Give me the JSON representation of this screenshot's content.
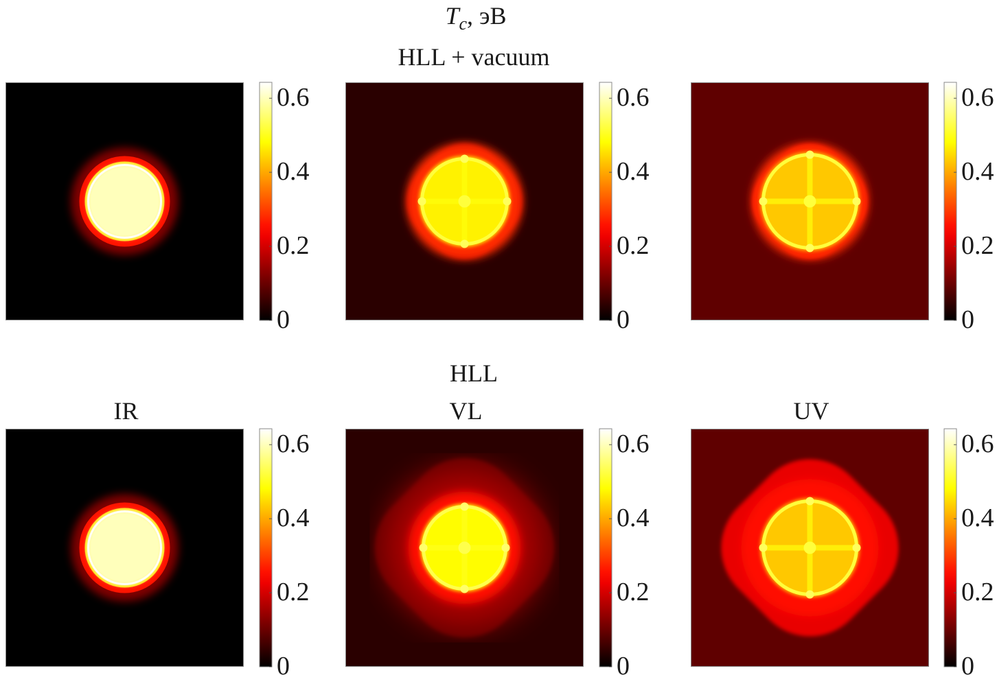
{
  "figure_title": {
    "symbol": "T",
    "subscript": "c",
    "unit": ", эВ"
  },
  "chart_data": {
    "type": "heatmap",
    "colormap": "hot",
    "clim": [
      0,
      0.643
    ],
    "colorbar_ticks": [
      0,
      0.2,
      0.4,
      0.6
    ],
    "colorbar_tick_labels": [
      "0",
      "0.2",
      "0.4",
      "0.6"
    ],
    "rows": [
      {
        "group_title": "HLL + vacuum",
        "panels": [
          {
            "label": "",
            "background_value": 0.0,
            "peak_value": 0.62,
            "style": "ir"
          },
          {
            "label": "",
            "background_value": 0.04,
            "peak_value": 0.48,
            "style": "halo"
          },
          {
            "label": "",
            "background_value": 0.09,
            "peak_value": 0.45,
            "style": "halo-bright"
          }
        ]
      },
      {
        "group_title": "HLL",
        "panels": [
          {
            "label": "IR",
            "background_value": 0.0,
            "peak_value": 0.62,
            "style": "ir"
          },
          {
            "label": "VL",
            "background_value": 0.04,
            "peak_value": 0.5,
            "style": "wide-dim"
          },
          {
            "label": "UV",
            "background_value": 0.09,
            "peak_value": 0.45,
            "style": "wide-bright"
          }
        ]
      }
    ]
  }
}
